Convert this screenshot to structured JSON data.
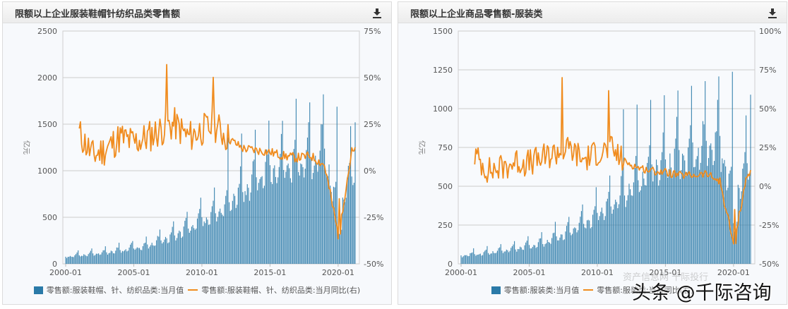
{
  "panels": [
    {
      "title": "限额以上企业服装鞋帽针纺织品类零售额",
      "download_icon": "download-icon",
      "legend": [
        {
          "type": "bar",
          "label": "零售额:服装鞋帽、针、纺织品类:当月值",
          "color": "#2a7aa8"
        },
        {
          "type": "line",
          "label": "零售额:服装鞋帽、针、纺织品类:当月同比(右)",
          "color": "#f08c1f"
        }
      ]
    },
    {
      "title": "限额以上企业商品零售额-服装类",
      "download_icon": "download-icon",
      "legend": [
        {
          "type": "bar",
          "label": "零售额:服装类:当月值",
          "color": "#2a7aa8"
        },
        {
          "type": "line",
          "label": "零售额:服装类:当月同比(右)",
          "color": "#f08c1f"
        }
      ]
    }
  ],
  "watermark": {
    "text": "头条 @千际咨询",
    "faint_text": "资产信息网 千际投行"
  },
  "chart_data": [
    {
      "type": "bar+line",
      "title": "限额以上企业服装鞋帽针纺织品类零售额",
      "ylabel": "亿元",
      "ylim": [
        0,
        2500
      ],
      "yticks": [
        "0",
        "500",
        "1000",
        "1500",
        "2000",
        "2500"
      ],
      "y2lim": [
        -50,
        75
      ],
      "y2ticks": [
        "-50%",
        "-25%",
        "0%",
        "25%",
        "50%",
        "75%"
      ],
      "xticks": [
        "2000-01",
        "2005-01",
        "2010-01",
        "2015-01",
        "2020-01"
      ],
      "x_range": [
        "2000-01",
        "2021-04"
      ],
      "grid": true,
      "legend_position": "bottom",
      "series": [
        {
          "name": "零售额:服装鞋帽、针、纺织品类:当月值",
          "type": "bar",
          "axis": "left",
          "approx_values_by_year_jan": {
            "2000": 80,
            "2002": 110,
            "2004": 150,
            "2006": 200,
            "2008": 320,
            "2010": 480,
            "2012": 700,
            "2014": 950,
            "2016": 1100,
            "2018": 1200,
            "2019": 1250,
            "2020": 600,
            "2021": 1000
          },
          "peak_approx": 1650,
          "last_value_approx": 1520
        },
        {
          "name": "零售额:服装鞋帽、针、纺织品类:当月同比(右)",
          "type": "line",
          "axis": "right",
          "approx_values_by_year": {
            "2001": 20,
            "2002": 8,
            "2003": 12,
            "2004": 18,
            "2005": 15,
            "2006": 18,
            "2007": 22,
            "2008": 25,
            "2009": 18,
            "2010": 22,
            "2011": 24,
            "2012": 17,
            "2013": 12,
            "2014": 11,
            "2015": 10,
            "2016": 8,
            "2017": 7,
            "2018": 8,
            "2019": 3,
            "2020": -34,
            "2021": 10
          },
          "max_approx": 57,
          "min_approx": -34
        }
      ]
    },
    {
      "type": "bar+line",
      "title": "限额以上企业商品零售额-服装类",
      "ylabel": "亿元",
      "ylim": [
        0,
        1500
      ],
      "yticks": [
        "0",
        "250",
        "500",
        "750",
        "1000",
        "1250",
        "1500"
      ],
      "y2lim": [
        -50,
        100
      ],
      "y2ticks": [
        "-50%",
        "-25%",
        "0%",
        "25%",
        "50%",
        "75%",
        "100%"
      ],
      "xticks": [
        "2000-01",
        "2005-01",
        "2010-01",
        "2015-01",
        "2020-01"
      ],
      "x_range": [
        "2000-01",
        "2021-04"
      ],
      "grid": true,
      "legend_position": "bottom",
      "series": [
        {
          "name": "零售额:服装类:当月值",
          "type": "bar",
          "axis": "left",
          "approx_values_by_year_jan": {
            "2000": 55,
            "2002": 75,
            "2004": 100,
            "2006": 140,
            "2008": 220,
            "2010": 330,
            "2012": 480,
            "2014": 640,
            "2016": 720,
            "2018": 780,
            "2019": 800,
            "2020": 420,
            "2021": 650
          },
          "peak_approx": 1210,
          "last_value_approx": 1090
        },
        {
          "name": "零售额:服装类:当月同比(右)",
          "type": "line",
          "axis": "right",
          "approx_values_by_year": {
            "2001": 20,
            "2002": 10,
            "2003": 12,
            "2004": 16,
            "2005": 15,
            "2006": 18,
            "2007": 22,
            "2008": 24,
            "2009": 17,
            "2010": 22,
            "2011": 24,
            "2012": 16,
            "2013": 12,
            "2014": 10,
            "2015": 9,
            "2016": 7,
            "2017": 7,
            "2018": 8,
            "2019": 3,
            "2020": -37,
            "2021": 8
          },
          "max_approx": 70,
          "min_approx": -37
        }
      ]
    }
  ]
}
